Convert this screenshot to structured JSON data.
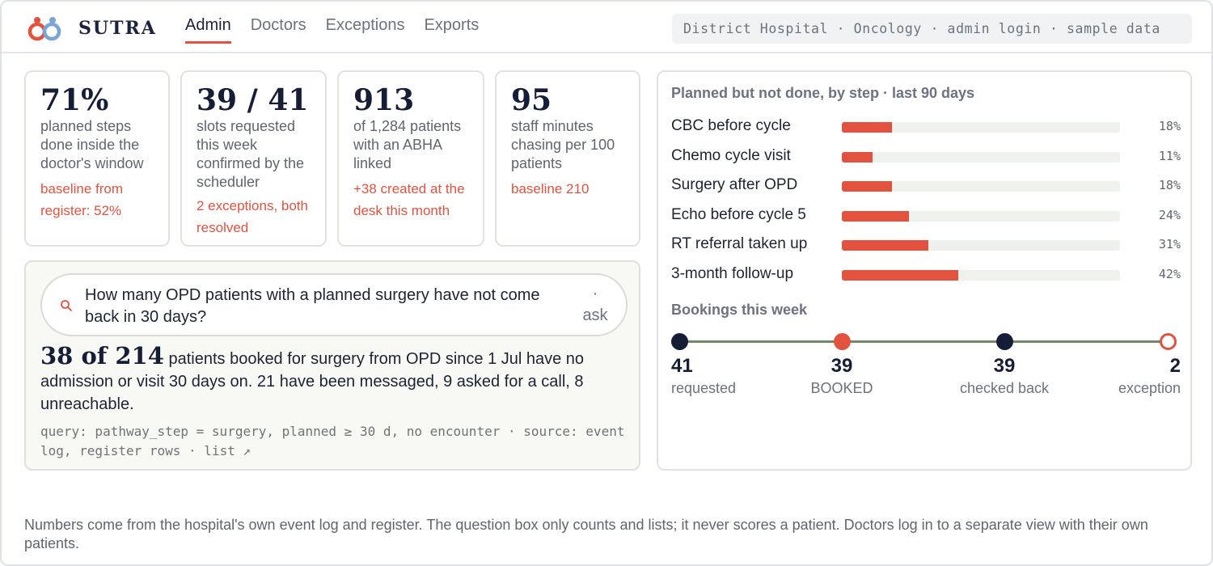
{
  "header": {
    "brand": "SUTRA",
    "tabs": [
      {
        "label": "Admin",
        "active": true
      },
      {
        "label": "Doctors",
        "active": false
      },
      {
        "label": "Exceptions",
        "active": false
      },
      {
        "label": "Exports",
        "active": false
      }
    ],
    "context": "District Hospital · Oncology · admin login · sample data"
  },
  "stats": [
    {
      "value": "71%",
      "desc": "planned steps done inside the doctor's window",
      "note": "baseline from register: 52%"
    },
    {
      "value": "39 / 41",
      "desc": "slots requested this week confirmed by the scheduler",
      "note": "2 exceptions, both resolved"
    },
    {
      "value": "913",
      "desc": "of 1,284 patients with an ABHA linked",
      "note": "+38 created at the desk this month"
    },
    {
      "value": "95",
      "desc": "staff minutes chasing per 100 patients",
      "note": "baseline 210"
    }
  ],
  "query": {
    "question": "How many OPD patients with a planned surgery have not come back in 30 days?",
    "ask_dot": "·",
    "ask_label": "ask",
    "answer_highlight": "38 of 214",
    "answer_text": " patients booked for surgery from OPD since 1 Jul have no admission or visit 30 days on. 21 have been messaged, 9 asked for a call, 8 unreachable.",
    "meta": "query: pathway_step = surgery, planned ≥ 30 d, no encounter · source: event log, register rows · ",
    "list_link": "list ↗"
  },
  "steps_panel": {
    "title": "Planned but not done, by step · last 90 days",
    "steps": [
      {
        "label": "CBC before cycle",
        "pct_value": 18,
        "pct_label": "18%"
      },
      {
        "label": "Chemo cycle visit",
        "pct_value": 11,
        "pct_label": "11%"
      },
      {
        "label": "Surgery after OPD",
        "pct_value": 18,
        "pct_label": "18%"
      },
      {
        "label": "Echo before cycle 5",
        "pct_value": 24,
        "pct_label": "24%"
      },
      {
        "label": "RT referral taken up",
        "pct_value": 31,
        "pct_label": "31%"
      },
      {
        "label": "3-month follow-up",
        "pct_value": 42,
        "pct_label": "42%"
      }
    ],
    "bookings_title": "Bookings this week",
    "bookings": [
      {
        "number": "41",
        "label": "requested",
        "dot": "navy"
      },
      {
        "number": "39",
        "label": "BOOKED",
        "dot": "red"
      },
      {
        "number": "39",
        "label": "checked back",
        "dot": "navy"
      },
      {
        "number": "2",
        "label": "exception",
        "dot": "red-ring"
      }
    ]
  },
  "footer": "Numbers come from the hospital's own event log and register. The question box only counts and lists; it never scores a patient. Doctors log in to a separate view with their own patients.",
  "colors": {
    "accent": "#e2523e",
    "navy": "#161d36",
    "timeline_line": "#6f8a64",
    "logo_blue": "#7aa4d8"
  }
}
